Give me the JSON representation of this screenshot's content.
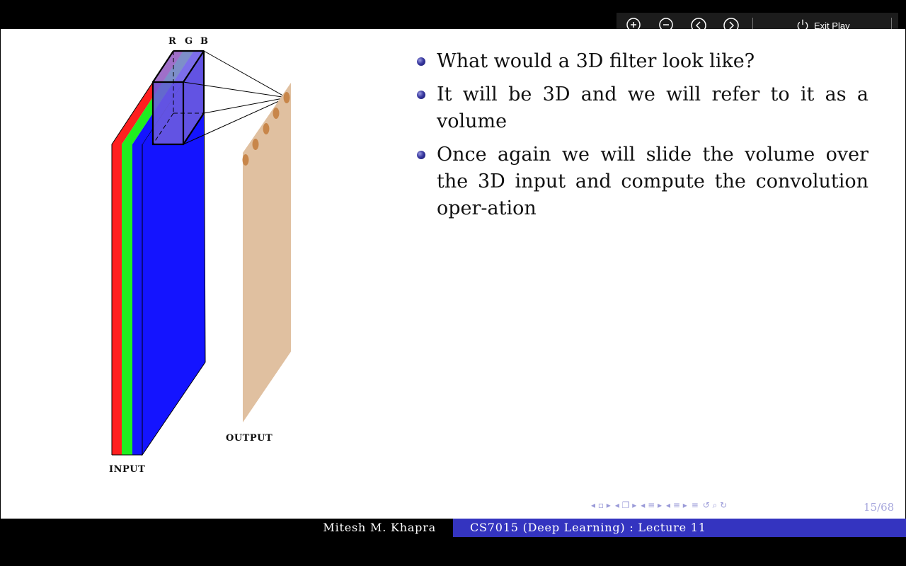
{
  "player": {
    "exit_label": "Exit Play",
    "icons": [
      "zoom-in-icon",
      "zoom-out-icon",
      "previous-icon",
      "next-icon",
      "power-icon"
    ]
  },
  "figure": {
    "rgb_labels": [
      "R",
      "G",
      "B"
    ],
    "input_label": "INPUT",
    "output_label": "OUTPUT",
    "colors": {
      "red": "#ff1f1f",
      "green": "#1fee1f",
      "blue": "#1414ff",
      "filter": "#6a5ae0",
      "output_plane": "#e0c0a0",
      "output_dot": "#c8864a"
    }
  },
  "content": {
    "bullets": [
      "What would a 3D filter look like?",
      "It will be 3D and we will refer to it as a volume",
      "Once again we will slide the volume over the 3D input and compute the convolution oper-ation"
    ]
  },
  "navigation": {
    "page_number": "15/68"
  },
  "footer": {
    "author": "Mitesh M. Khapra",
    "course": "CS7015 (Deep Learning) : Lecture 11"
  }
}
